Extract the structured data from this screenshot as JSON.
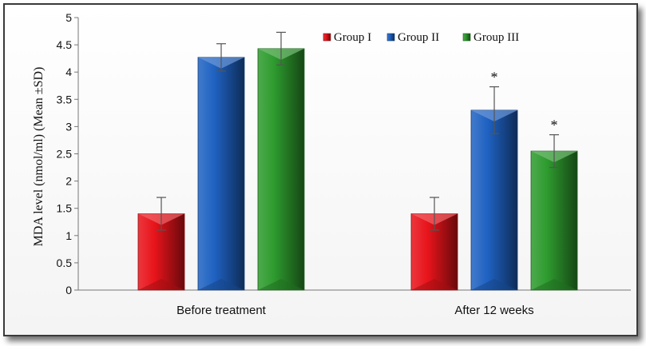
{
  "chart_data": {
    "type": "bar",
    "title": "",
    "xlabel": "",
    "ylabel": "MDA level (nmol/ml) (Mean ±SD)",
    "ylim": [
      0,
      5
    ],
    "yticks": [
      "0",
      "0.5",
      "1",
      "1.5",
      "2",
      "2.5",
      "3",
      "3.5",
      "4",
      "4.5",
      "5"
    ],
    "grid": false,
    "legend_position": "top-right",
    "categories": [
      "Before treatment",
      "After 12 weeks"
    ],
    "series": [
      {
        "name": "Group I",
        "color": "#e8141b",
        "values": [
          1.4,
          1.4
        ],
        "errors": [
          0.3,
          0.3
        ],
        "markers": [
          "",
          ""
        ]
      },
      {
        "name": "Group II",
        "color": "#1f62c2",
        "values": [
          4.27,
          3.3
        ],
        "errors": [
          0.25,
          0.43
        ],
        "markers": [
          "",
          "*"
        ]
      },
      {
        "name": "Group III",
        "color": "#2e9b2e",
        "values": [
          4.43,
          2.55
        ],
        "errors": [
          0.3,
          0.3
        ],
        "markers": [
          "",
          "*"
        ]
      }
    ]
  }
}
